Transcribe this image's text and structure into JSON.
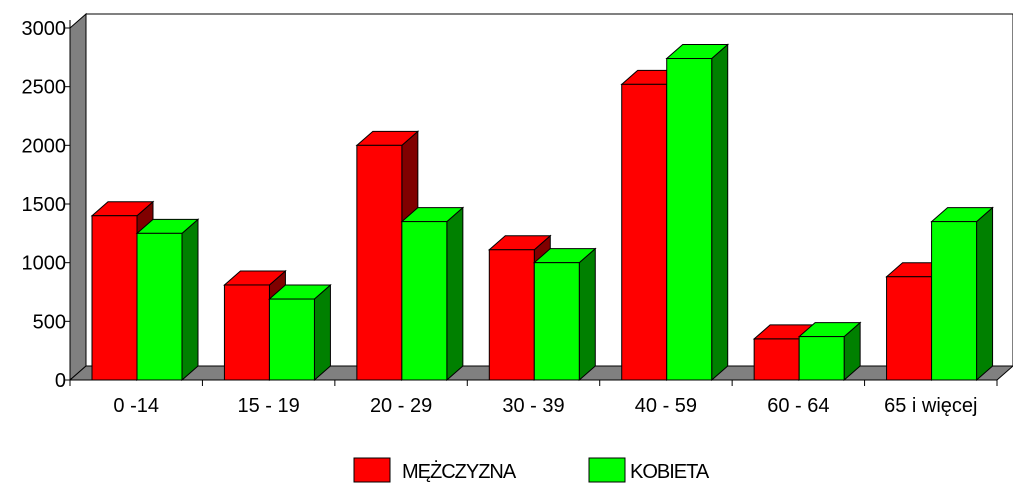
{
  "chart_data": {
    "type": "bar",
    "categories": [
      "0 -14",
      "15 - 19",
      "20 - 29",
      "30 - 39",
      "40 - 59",
      "60 - 64",
      "65 i więcej"
    ],
    "series": [
      {
        "name": "MĘŻCZYZNA",
        "values": [
          1400,
          810,
          2000,
          1110,
          2520,
          350,
          880
        ],
        "color": "#ff0000"
      },
      {
        "name": "KOBIETA",
        "values": [
          1250,
          690,
          1350,
          1000,
          2740,
          370,
          1350
        ],
        "color": "#00ff00"
      }
    ],
    "y_ticks": [
      0,
      500,
      1000,
      1500,
      2000,
      2500,
      3000
    ],
    "ylim": [
      0,
      3000
    ],
    "legend_position": "bottom",
    "style": "3d",
    "colors": {
      "wall": "#ffffff",
      "floor": "#808080",
      "male_side": "#800000",
      "female_side": "#008000"
    }
  }
}
